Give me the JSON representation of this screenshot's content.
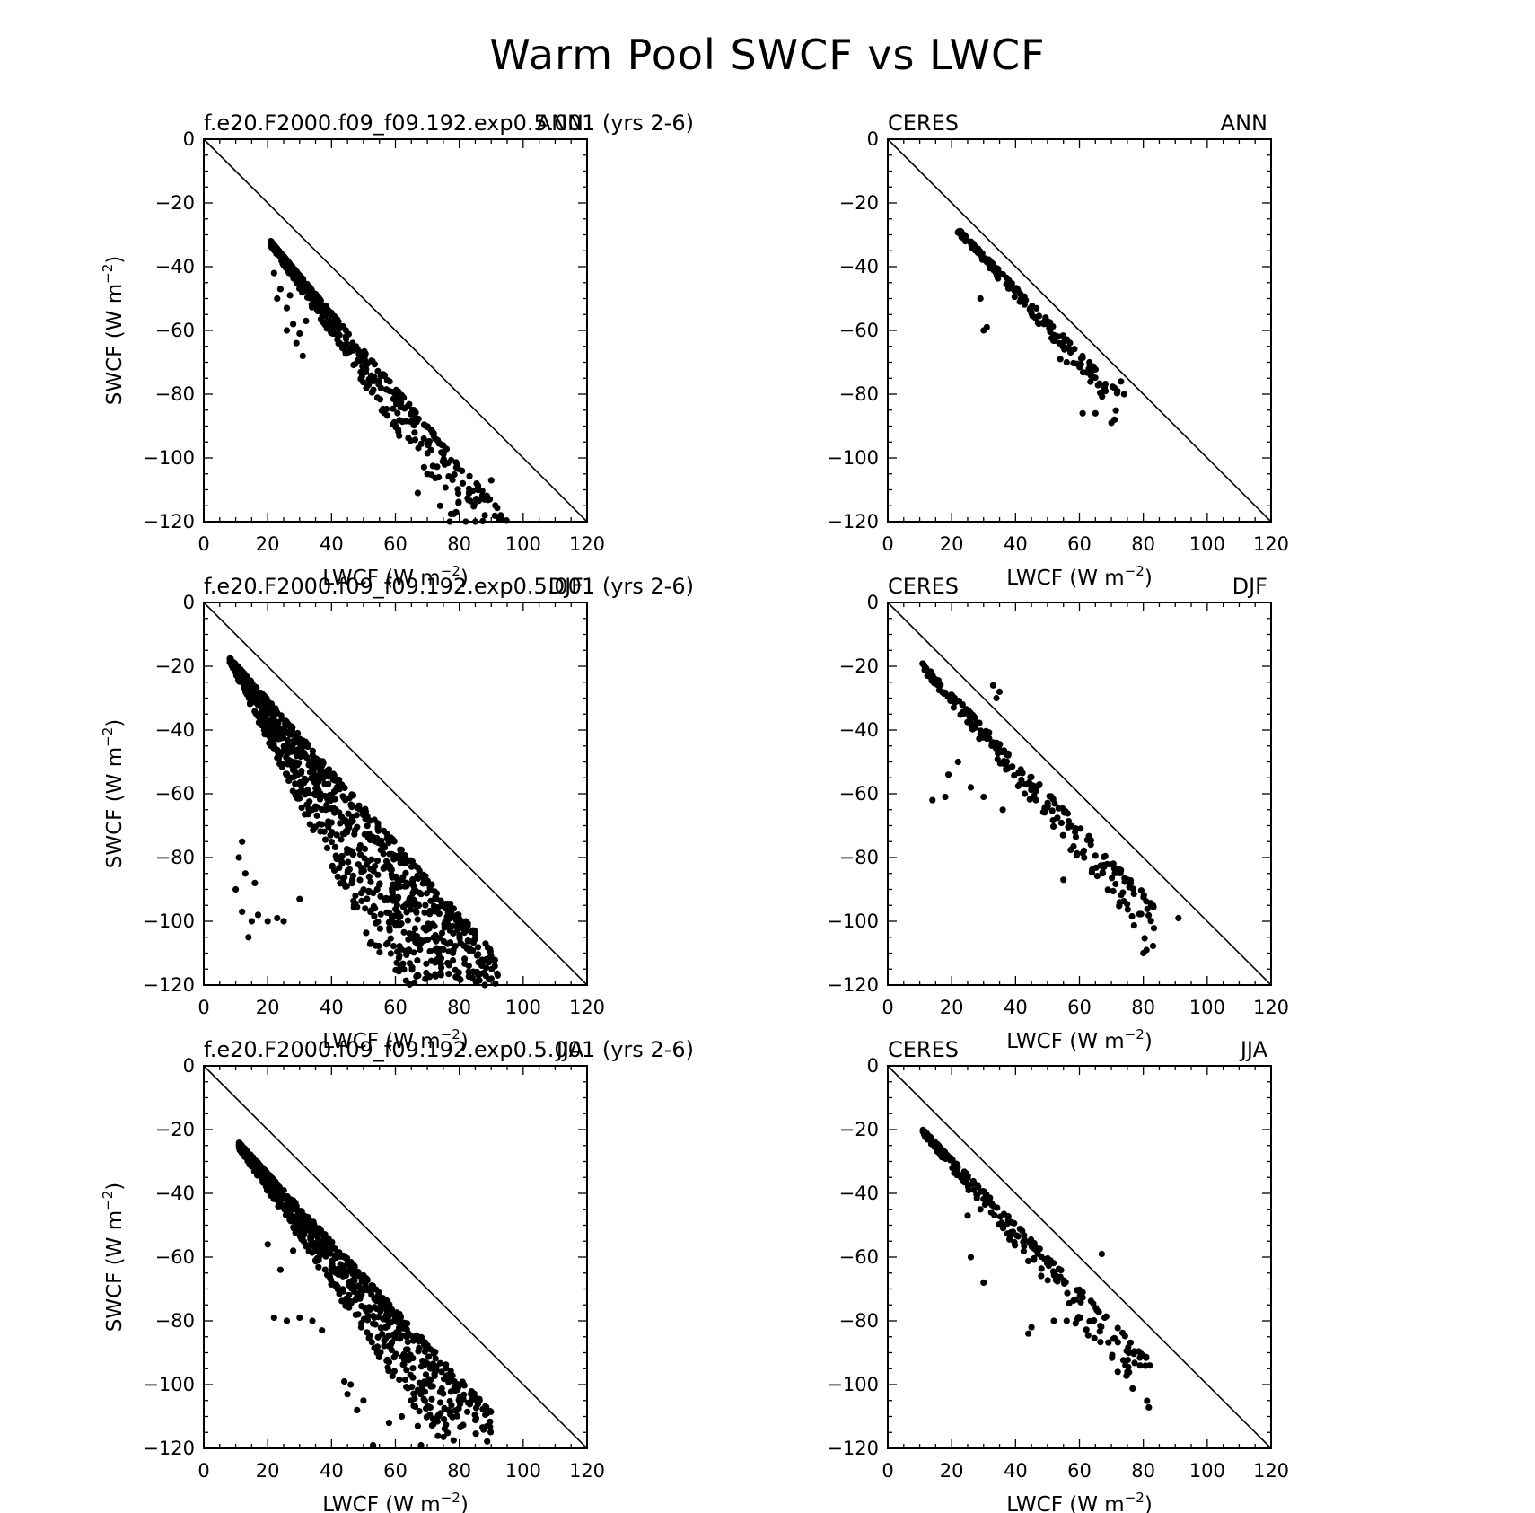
{
  "figure": {
    "title": "Warm Pool SWCF vs LWCF"
  },
  "styles": {
    "point_color": "#000000",
    "line_color": "#000000",
    "background": "#ffffff"
  },
  "chart_data": [
    {
      "type": "scatter",
      "title_left": "f.e20.F2000.f09_f09.192.exp0.5.001 (yrs 2-6)",
      "title_right": "ANN",
      "xlabel": "LWCF (W m-2)",
      "ylabel": "SWCF (W m-2)",
      "xlim": [
        0,
        120
      ],
      "ylim": [
        -120,
        0
      ],
      "xticks": [
        0,
        20,
        40,
        60,
        80,
        100,
        120
      ],
      "yticks": [
        0,
        -20,
        -40,
        -60,
        -80,
        -100,
        -120
      ],
      "reference_line": "y = -x",
      "cloud": {
        "n": 600,
        "seed": 11,
        "x_min": 21,
        "x_max": 95,
        "x_skew": 2.3,
        "y_at_min": -32,
        "slope": -1.18,
        "spread_base": 1.5,
        "spread_growth": 0.32,
        "spread_skew": 1.8
      },
      "points": [
        [
          22,
          -42
        ],
        [
          23,
          -50
        ],
        [
          24,
          -47
        ],
        [
          26,
          -53
        ],
        [
          27,
          -49
        ],
        [
          28,
          -58
        ],
        [
          29,
          -64
        ],
        [
          31,
          -68
        ],
        [
          30,
          -61
        ],
        [
          32,
          -57
        ],
        [
          26,
          -60
        ],
        [
          67,
          -111
        ],
        [
          70,
          -105
        ],
        [
          74,
          -115
        ],
        [
          77,
          -120
        ],
        [
          79,
          -117
        ],
        [
          82,
          -120
        ],
        [
          85,
          -120
        ],
        [
          88,
          -118
        ],
        [
          93,
          -118
        ],
        [
          90,
          -107
        ]
      ]
    },
    {
      "type": "scatter",
      "title_left": "CERES",
      "title_right": "ANN",
      "xlabel": "LWCF (W m-2)",
      "ylabel": "",
      "xlim": [
        0,
        120
      ],
      "ylim": [
        -120,
        0
      ],
      "xticks": [
        0,
        20,
        40,
        60,
        80,
        100,
        120
      ],
      "yticks": [
        0,
        -20,
        -40,
        -60,
        -80,
        -100,
        -120
      ],
      "reference_line": "y = -x",
      "cloud": {
        "n": 170,
        "seed": 23,
        "x_min": 22,
        "x_max": 72,
        "x_skew": 1.2,
        "y_at_min": -28,
        "slope": -1.02,
        "spread_base": 1.5,
        "spread_growth": 0.12,
        "spread_skew": 1.6
      },
      "points": [
        [
          30,
          -60
        ],
        [
          31,
          -59
        ],
        [
          29,
          -50
        ],
        [
          61,
          -86
        ],
        [
          65,
          -86
        ],
        [
          71,
          -88
        ],
        [
          70,
          -89
        ],
        [
          74,
          -80
        ],
        [
          73,
          -76
        ],
        [
          54,
          -69
        ],
        [
          56,
          -70
        ]
      ]
    },
    {
      "type": "scatter",
      "title_left": "f.e20.F2000.f09_f09.192.exp0.5.001 (yrs 2-6)",
      "title_right": "DJF",
      "xlabel": "LWCF (W m-2)",
      "ylabel": "SWCF (W m-2)",
      "xlim": [
        0,
        120
      ],
      "ylim": [
        -120,
        0
      ],
      "xticks": [
        0,
        20,
        40,
        60,
        80,
        100,
        120
      ],
      "yticks": [
        0,
        -20,
        -40,
        -60,
        -80,
        -100,
        -120
      ],
      "reference_line": "y = -x",
      "cloud": {
        "n": 1100,
        "seed": 37,
        "x_min": 8,
        "x_max": 92,
        "x_skew": 1.1,
        "y_at_min": -17,
        "slope": -1.12,
        "spread_base": 2,
        "spread_growth": 0.9,
        "spread_skew": 1.4,
        "spread_cap": 42
      },
      "points": [
        [
          10,
          -90
        ],
        [
          12,
          -97
        ],
        [
          14,
          -105
        ],
        [
          15,
          -100
        ],
        [
          17,
          -98
        ],
        [
          20,
          -100
        ],
        [
          23,
          -99
        ],
        [
          25,
          -100
        ],
        [
          30,
          -93
        ],
        [
          11,
          -80
        ],
        [
          13,
          -85
        ],
        [
          12,
          -75
        ],
        [
          16,
          -88
        ],
        [
          86,
          -117
        ],
        [
          88,
          -120
        ],
        [
          90,
          -118
        ],
        [
          92,
          -117
        ],
        [
          80,
          -118
        ],
        [
          83,
          -114
        ],
        [
          78,
          -110
        ]
      ]
    },
    {
      "type": "scatter",
      "title_left": "CERES",
      "title_right": "DJF",
      "xlabel": "LWCF (W m-2)",
      "ylabel": "",
      "xlim": [
        0,
        120
      ],
      "ylim": [
        -120,
        0
      ],
      "xticks": [
        0,
        20,
        40,
        60,
        80,
        100,
        120
      ],
      "yticks": [
        0,
        -20,
        -40,
        -60,
        -80,
        -100,
        -120
      ],
      "reference_line": "y = -x",
      "cloud": {
        "n": 230,
        "seed": 41,
        "x_min": 10,
        "x_max": 84,
        "x_skew": 1,
        "y_at_min": -18,
        "slope": -1.04,
        "spread_base": 2,
        "spread_growth": 0.18,
        "spread_skew": 1.4
      },
      "points": [
        [
          14,
          -62
        ],
        [
          18,
          -61
        ],
        [
          26,
          -58
        ],
        [
          30,
          -61
        ],
        [
          36,
          -65
        ],
        [
          22,
          -50
        ],
        [
          19,
          -54
        ],
        [
          55,
          -87
        ],
        [
          91,
          -99
        ],
        [
          81,
          -109
        ],
        [
          80,
          -110
        ],
        [
          33,
          -26
        ],
        [
          35,
          -28
        ],
        [
          34,
          -30
        ]
      ]
    },
    {
      "type": "scatter",
      "title_left": "f.e20.F2000.f09_f09.192.exp0.5.001 (yrs 2-6)",
      "title_right": "JJA",
      "xlabel": "LWCF (W m-2)",
      "ylabel": "SWCF (W m-2)",
      "xlim": [
        0,
        120
      ],
      "ylim": [
        -120,
        0
      ],
      "xticks": [
        0,
        20,
        40,
        60,
        80,
        100,
        120
      ],
      "yticks": [
        0,
        -20,
        -40,
        -60,
        -80,
        -100,
        -120
      ],
      "reference_line": "y = -x",
      "cloud": {
        "n": 900,
        "seed": 53,
        "x_min": 11,
        "x_max": 90,
        "x_skew": 1.5,
        "y_at_min": -24,
        "slope": -1.07,
        "spread_base": 2,
        "spread_growth": 0.42,
        "spread_skew": 1.6
      },
      "points": [
        [
          22,
          -79
        ],
        [
          26,
          -80
        ],
        [
          30,
          -79
        ],
        [
          34,
          -80
        ],
        [
          37,
          -83
        ],
        [
          44,
          -99
        ],
        [
          46,
          -100
        ],
        [
          48,
          -108
        ],
        [
          50,
          -105
        ],
        [
          53,
          -119
        ],
        [
          58,
          -112
        ],
        [
          62,
          -110
        ],
        [
          67,
          -113
        ],
        [
          68,
          -119
        ],
        [
          45,
          -103
        ],
        [
          20,
          -56
        ],
        [
          24,
          -64
        ],
        [
          28,
          -58
        ]
      ]
    },
    {
      "type": "scatter",
      "title_left": "CERES",
      "title_right": "JJA",
      "xlabel": "LWCF (W m-2)",
      "ylabel": "",
      "xlim": [
        0,
        120
      ],
      "ylim": [
        -120,
        0
      ],
      "xticks": [
        0,
        20,
        40,
        60,
        80,
        100,
        120
      ],
      "yticks": [
        0,
        -20,
        -40,
        -60,
        -80,
        -100,
        -120
      ],
      "reference_line": "y = -x",
      "cloud": {
        "n": 250,
        "seed": 67,
        "x_min": 11,
        "x_max": 82,
        "x_skew": 1.4,
        "y_at_min": -20,
        "slope": -1.02,
        "spread_base": 1.5,
        "spread_growth": 0.22,
        "spread_skew": 1.8
      },
      "points": [
        [
          26,
          -60
        ],
        [
          30,
          -68
        ],
        [
          25,
          -47
        ],
        [
          29,
          -45
        ],
        [
          72,
          -96
        ],
        [
          75,
          -96
        ],
        [
          79,
          -94
        ],
        [
          82,
          -94
        ],
        [
          67,
          -59
        ],
        [
          45,
          -82
        ],
        [
          44,
          -84
        ],
        [
          52,
          -80
        ],
        [
          56,
          -80
        ]
      ]
    }
  ]
}
